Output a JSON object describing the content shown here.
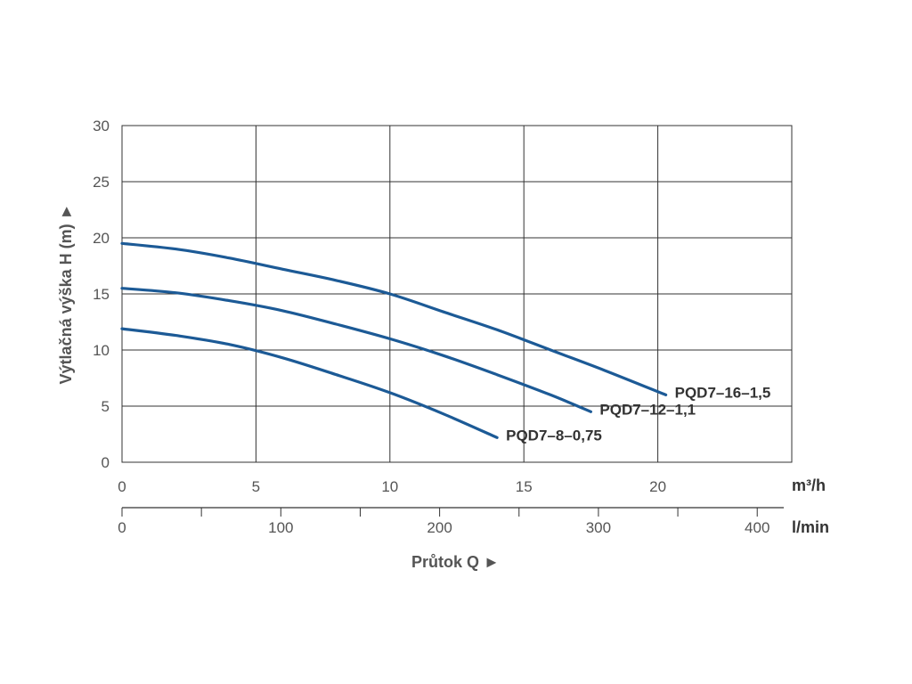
{
  "chart_data": {
    "type": "line",
    "ylabel": "Výtlačná výška H (m) ►",
    "xlabel": "Průtok Q ►",
    "x_unit": "m³/h",
    "x2_unit": "l/min",
    "xlim": [
      0,
      25
    ],
    "ylim": [
      0,
      30
    ],
    "x_ticks": [
      "0",
      "5",
      "10",
      "15",
      "20"
    ],
    "y_ticks": [
      "0",
      "5",
      "10",
      "15",
      "20",
      "25",
      "30"
    ],
    "x2_ticks": [
      "0",
      "100",
      "200",
      "300",
      "400"
    ],
    "x2_tick_values": [
      0,
      100,
      200,
      300,
      400
    ],
    "x2_max": 416.7,
    "grid": true,
    "line_color": "#1c5a96",
    "series": [
      {
        "name": "PQD7–16–1,5",
        "points": [
          [
            0,
            19.5
          ],
          [
            2,
            19
          ],
          [
            4,
            18.2
          ],
          [
            6,
            17.2
          ],
          [
            8,
            16.2
          ],
          [
            10,
            15
          ],
          [
            12,
            13.4
          ],
          [
            14,
            11.8
          ],
          [
            16,
            10
          ],
          [
            18,
            8.2
          ],
          [
            20.3,
            6
          ]
        ]
      },
      {
        "name": "PQD7–12–1,1",
        "points": [
          [
            0,
            15.5
          ],
          [
            2,
            15.1
          ],
          [
            4,
            14.4
          ],
          [
            6,
            13.5
          ],
          [
            8,
            12.3
          ],
          [
            10,
            11
          ],
          [
            12,
            9.5
          ],
          [
            14,
            7.8
          ],
          [
            16,
            6
          ],
          [
            17.5,
            4.5
          ]
        ]
      },
      {
        "name": "PQD7–8–0,75",
        "points": [
          [
            0,
            11.9
          ],
          [
            2,
            11.3
          ],
          [
            4,
            10.5
          ],
          [
            6,
            9.3
          ],
          [
            8,
            7.8
          ],
          [
            10,
            6.2
          ],
          [
            12,
            4.3
          ],
          [
            14,
            2.2
          ]
        ]
      }
    ]
  }
}
